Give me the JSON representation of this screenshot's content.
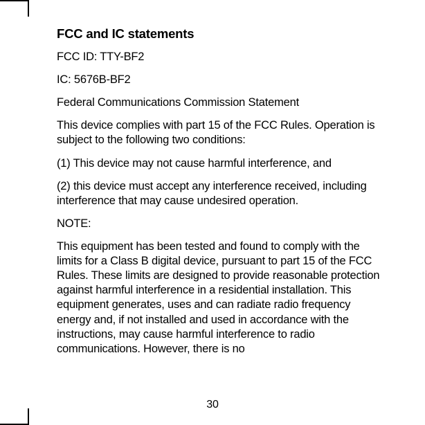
{
  "page": {
    "number": "30",
    "background": "#ffffff",
    "text_color": "#000000"
  },
  "typography": {
    "heading_fontsize": 18.5,
    "heading_weight": 700,
    "body_fontsize": 16.5,
    "body_weight": 400,
    "line_height": 1.28,
    "font_family": "Helvetica Neue, Arial, sans-serif"
  },
  "heading": "FCC and IC statements",
  "paragraphs": {
    "p1": "FCC ID: TTY-BF2",
    "p2": "IC: 5676B-BF2",
    "p3": "Federal Communications Commission Statement",
    "p4": "This device complies with part 15 of the FCC Rules. Operation is subject to the following two conditions:",
    "p5": "(1) This device may not cause harmful interference, and",
    "p6": "(2) this device must accept any interference received, including interference that may cause undesired operation.",
    "p7": "NOTE:",
    "p8": "This equipment has been tested and found to comply with the limits for a Class B digital device, pursuant to part 15 of the FCC Rules. These limits are designed to provide reasonable protection against harmful interference in a residential installation. This equipment generates, uses and can radiate radio frequency energy and, if not installed and used in accordance with the instructions, may cause harmful interference to radio communications. However, there is no"
  }
}
